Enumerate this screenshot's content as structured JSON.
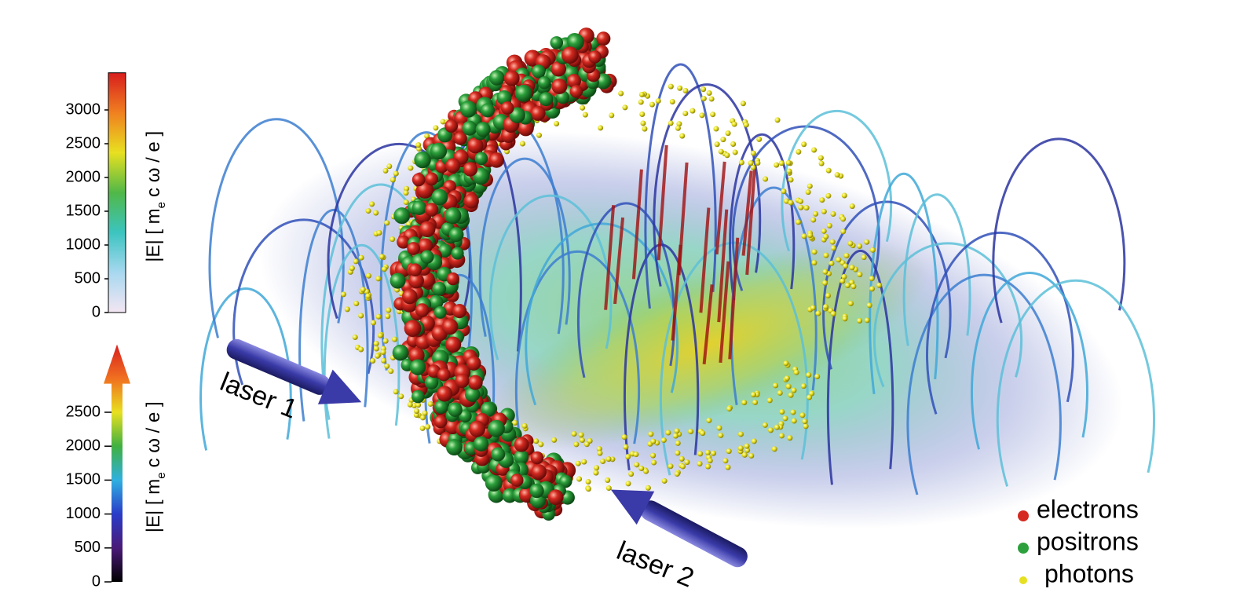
{
  "colorbars": [
    {
      "label": {
        "before": "|E| [ m",
        "sub": "e",
        "after": "c ω / e ]"
      },
      "ylim": [
        0,
        3550
      ],
      "yticks": [
        0,
        500,
        1000,
        1500,
        2000,
        2500,
        3000
      ],
      "colors": [
        "#f4e6f2",
        "#a8d8f0",
        "#3cc4c0",
        "#50b848",
        "#e8e020",
        "#f08020",
        "#d81e1e"
      ]
    },
    {
      "label": {
        "before": "|E| [ m",
        "sub": "e",
        "after": "c ω / e ]"
      },
      "ylim": [
        0,
        3500
      ],
      "yticks": [
        0,
        500,
        1000,
        1500,
        2000,
        2500
      ],
      "colors": [
        "#000000",
        "#4a1a78",
        "#2a3cc8",
        "#30b0e0",
        "#40b040",
        "#e8e020",
        "#f07020",
        "#d81e1e"
      ]
    }
  ],
  "legend": [
    {
      "name": "electrons",
      "color": "#d42a20"
    },
    {
      "name": "positrons",
      "color": "#2ca03c"
    },
    {
      "name": "photons",
      "color": "#e6e020"
    }
  ],
  "annotations": [
    "laser 1",
    "laser 2"
  ]
}
